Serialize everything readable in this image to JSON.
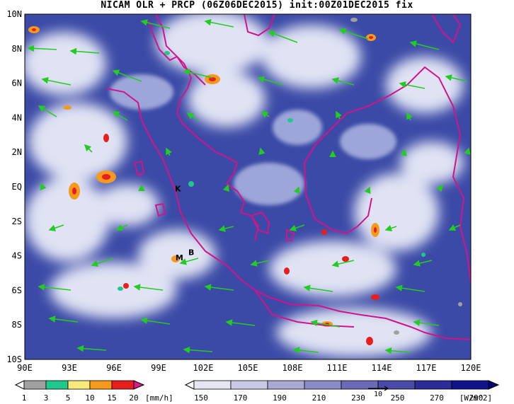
{
  "title": "NICAM OLR + PRCP (06Z06DEC2015) init:00Z01DEC2015 fix",
  "map": {
    "lat_labels": [
      "10N",
      "8N",
      "6N",
      "4N",
      "2N",
      "EQ",
      "2S",
      "4S",
      "6S",
      "8S",
      "10S"
    ],
    "lon_labels": [
      "90E",
      "93E",
      "96E",
      "99E",
      "102E",
      "105E",
      "108E",
      "111E",
      "114E",
      "117E",
      "120E"
    ],
    "markers": [
      {
        "label": "K",
        "lon": 100.3,
        "lat": -0.1
      },
      {
        "label": "M",
        "lon": 100.4,
        "lat": -4.1
      },
      {
        "label": "B",
        "lon": 101.2,
        "lat": -3.8
      }
    ]
  },
  "colorbar_prcp": {
    "values": [
      "1",
      "3",
      "5",
      "10",
      "15",
      "20"
    ],
    "unit": "[mm/h]",
    "colors": [
      "#ffffff",
      "#a0a0a0",
      "#1fc88c",
      "#f7e97c",
      "#f59a1c",
      "#e81e1e",
      "#d91a8c"
    ]
  },
  "colorbar_olr": {
    "values": [
      "150",
      "170",
      "190",
      "210",
      "230",
      "250",
      "270",
      "290"
    ],
    "unit": "[W/m^2]",
    "vector_ref": "10",
    "colors": [
      "#ffffff",
      "#e6e6f2",
      "#cacae6",
      "#a9a9d6",
      "#8a8ac8",
      "#6a6ab8",
      "#4a4aa8",
      "#2c2c98",
      "#14148a",
      "#05057a"
    ]
  },
  "palette": {
    "ocean_blue": "#2a3a9c",
    "cloud": "#eef0fa",
    "coast": "#d0148c",
    "wind": "#22cc22"
  }
}
